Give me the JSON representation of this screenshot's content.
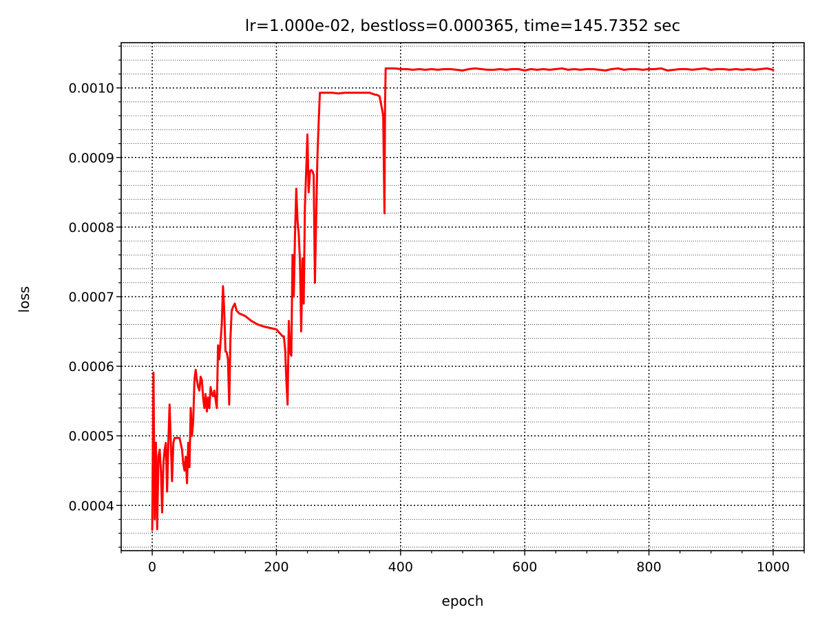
{
  "chart_data": {
    "type": "line",
    "title": "lr=1.000e-02, bestloss=0.000365, time=145.7352 sec",
    "xlabel": "epoch",
    "ylabel": "loss",
    "xlim": [
      -50,
      1050
    ],
    "ylim": [
      0.000335,
      0.001065
    ],
    "xticks": [
      0,
      200,
      400,
      600,
      800,
      1000
    ],
    "xtick_labels": [
      "0",
      "200",
      "400",
      "600",
      "800",
      "1000"
    ],
    "yticks": [
      0.0004,
      0.0005,
      0.0006,
      0.0007,
      0.0008,
      0.0009,
      0.001
    ],
    "ytick_labels": [
      "0.0004",
      "0.0005",
      "0.0006",
      "0.0007",
      "0.0008",
      "0.0009",
      "0.0010"
    ],
    "x_minor_step": 50,
    "y_minor_step": 2e-05,
    "grid": true,
    "grid_style": "dotted",
    "series": [
      {
        "color": "#ff0000",
        "x": [
          0,
          2,
          4,
          6,
          8,
          10,
          12,
          14,
          16,
          18,
          20,
          22,
          24,
          26,
          28,
          30,
          32,
          34,
          36,
          40,
          44,
          48,
          50,
          52,
          54,
          56,
          58,
          60,
          62,
          64,
          66,
          68,
          70,
          72,
          74,
          76,
          78,
          80,
          82,
          84,
          86,
          88,
          90,
          92,
          94,
          96,
          98,
          100,
          104,
          106,
          108,
          110,
          112,
          114,
          116,
          118,
          120,
          122,
          124,
          126,
          128,
          130,
          133,
          136,
          140,
          150,
          160,
          170,
          180,
          190,
          200,
          205,
          210,
          212,
          214,
          216,
          218,
          220,
          222,
          224,
          226,
          228,
          230,
          232,
          234,
          236,
          238,
          240,
          242,
          244,
          246,
          248,
          250,
          252,
          254,
          256,
          258,
          260,
          262,
          264,
          266,
          268,
          270,
          280,
          290,
          300,
          310,
          320,
          330,
          340,
          350,
          360,
          362,
          366,
          370,
          372,
          374,
          375,
          376,
          380,
          390,
          400,
          410,
          420,
          430,
          440,
          450,
          460,
          470,
          480,
          490,
          500,
          510,
          520,
          530,
          540,
          550,
          560,
          570,
          580,
          590,
          600,
          610,
          620,
          630,
          640,
          650,
          660,
          670,
          680,
          690,
          700,
          710,
          720,
          730,
          740,
          750,
          760,
          770,
          780,
          790,
          800,
          810,
          820,
          830,
          840,
          850,
          860,
          870,
          880,
          890,
          900,
          910,
          920,
          930,
          940,
          950,
          960,
          970,
          980,
          990,
          1000
        ],
        "y": [
          0.000365,
          0.000591,
          0.00038,
          0.00049,
          0.000366,
          0.00047,
          0.00048,
          0.00045,
          0.00039,
          0.00046,
          0.00048,
          0.00049,
          0.00042,
          0.00049,
          0.000545,
          0.00049,
          0.000435,
          0.00049,
          0.000497,
          0.000497,
          0.000497,
          0.00048,
          0.00046,
          0.00045,
          0.00047,
          0.000432,
          0.00049,
          0.000455,
          0.00054,
          0.0005,
          0.00052,
          0.00058,
          0.000595,
          0.00058,
          0.00057,
          0.000565,
          0.000585,
          0.00058,
          0.000555,
          0.00054,
          0.00056,
          0.000535,
          0.000555,
          0.00054,
          0.00057,
          0.00056,
          0.000557,
          0.000565,
          0.00054,
          0.00063,
          0.00061,
          0.000635,
          0.00066,
          0.000715,
          0.00068,
          0.000622,
          0.00062,
          0.00061,
          0.000545,
          0.00064,
          0.00068,
          0.000685,
          0.00069,
          0.00068,
          0.000676,
          0.000672,
          0.000665,
          0.00066,
          0.000657,
          0.000655,
          0.000653,
          0.000648,
          0.000643,
          0.000643,
          0.000625,
          0.00058,
          0.000545,
          0.000665,
          0.00062,
          0.000615,
          0.00076,
          0.0007,
          0.00079,
          0.000855,
          0.00081,
          0.00079,
          0.00075,
          0.00065,
          0.000755,
          0.00069,
          0.00083,
          0.00088,
          0.000933,
          0.00085,
          0.00088,
          0.000882,
          0.00088,
          0.000875,
          0.00072,
          0.00081,
          0.0009,
          0.00095,
          0.000993,
          0.000993,
          0.000993,
          0.000992,
          0.000993,
          0.000993,
          0.000993,
          0.000993,
          0.000993,
          0.00099,
          0.00099,
          0.000988,
          0.00097,
          0.00096,
          0.00082,
          0.00098,
          0.001028,
          0.001028,
          0.001028,
          0.001027,
          0.001027,
          0.001026,
          0.001027,
          0.001026,
          0.001027,
          0.001026,
          0.001027,
          0.001027,
          0.001026,
          0.001025,
          0.001027,
          0.001028,
          0.001027,
          0.001026,
          0.001026,
          0.001027,
          0.001026,
          0.001027,
          0.001027,
          0.001025,
          0.001027,
          0.001026,
          0.001027,
          0.001026,
          0.001027,
          0.001028,
          0.001026,
          0.001027,
          0.001026,
          0.001027,
          0.001027,
          0.001026,
          0.001025,
          0.001027,
          0.001028,
          0.001026,
          0.001027,
          0.001027,
          0.001026,
          0.001027,
          0.001027,
          0.001028,
          0.001025,
          0.001026,
          0.001027,
          0.001027,
          0.001026,
          0.001027,
          0.001028,
          0.001026,
          0.001027,
          0.001027,
          0.001026,
          0.001027,
          0.001026,
          0.001027,
          0.001026,
          0.001027,
          0.001028,
          0.001026
        ]
      }
    ]
  }
}
